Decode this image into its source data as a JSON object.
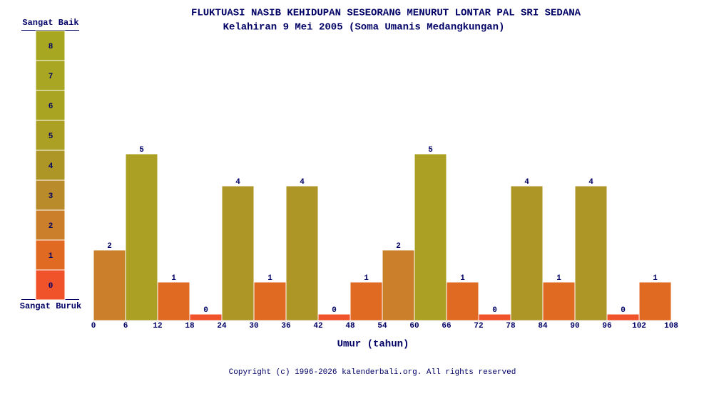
{
  "chart_data": {
    "type": "histogram",
    "title": "FLUKTUASI NASIB KEHIDUPAN SESEORANG MENURUT LONTAR PAL SRI SEDANA",
    "subtitle": "Kelahiran 9 Mei 2005 (Soma Umanis Medangkungan)",
    "x_label": "Umur (tahun)",
    "bins": [
      0,
      6,
      12,
      18,
      24,
      30,
      36,
      42,
      48,
      54,
      60,
      66,
      72,
      78,
      84,
      90,
      96,
      102,
      108
    ],
    "values": [
      2,
      5,
      1,
      0,
      4,
      1,
      4,
      0,
      1,
      2,
      5,
      1,
      0,
      4,
      1,
      4,
      0,
      1
    ],
    "xlim": [
      0,
      108
    ],
    "xticks": [
      0,
      6,
      12,
      18,
      24,
      30,
      36,
      42,
      48,
      54,
      60,
      66,
      72,
      78,
      84,
      90,
      96,
      102,
      108
    ],
    "ylim": [
      -0.2,
      8
    ],
    "scale": {
      "top_label": "Sangat Baik",
      "bottom_label": "Sangat Buruk",
      "levels": [
        0,
        1,
        2,
        3,
        4,
        5,
        6,
        7,
        8
      ],
      "colors": [
        "#f0522a",
        "#e06a22",
        "#cb7f2a",
        "#b98b2a",
        "#ad9626",
        "#aba023",
        "#a9a522",
        "#a8a622",
        "#a8a722"
      ]
    },
    "copyright": "Copyright (c) 1996-2026 kalenderbali.org. All rights reserved"
  }
}
